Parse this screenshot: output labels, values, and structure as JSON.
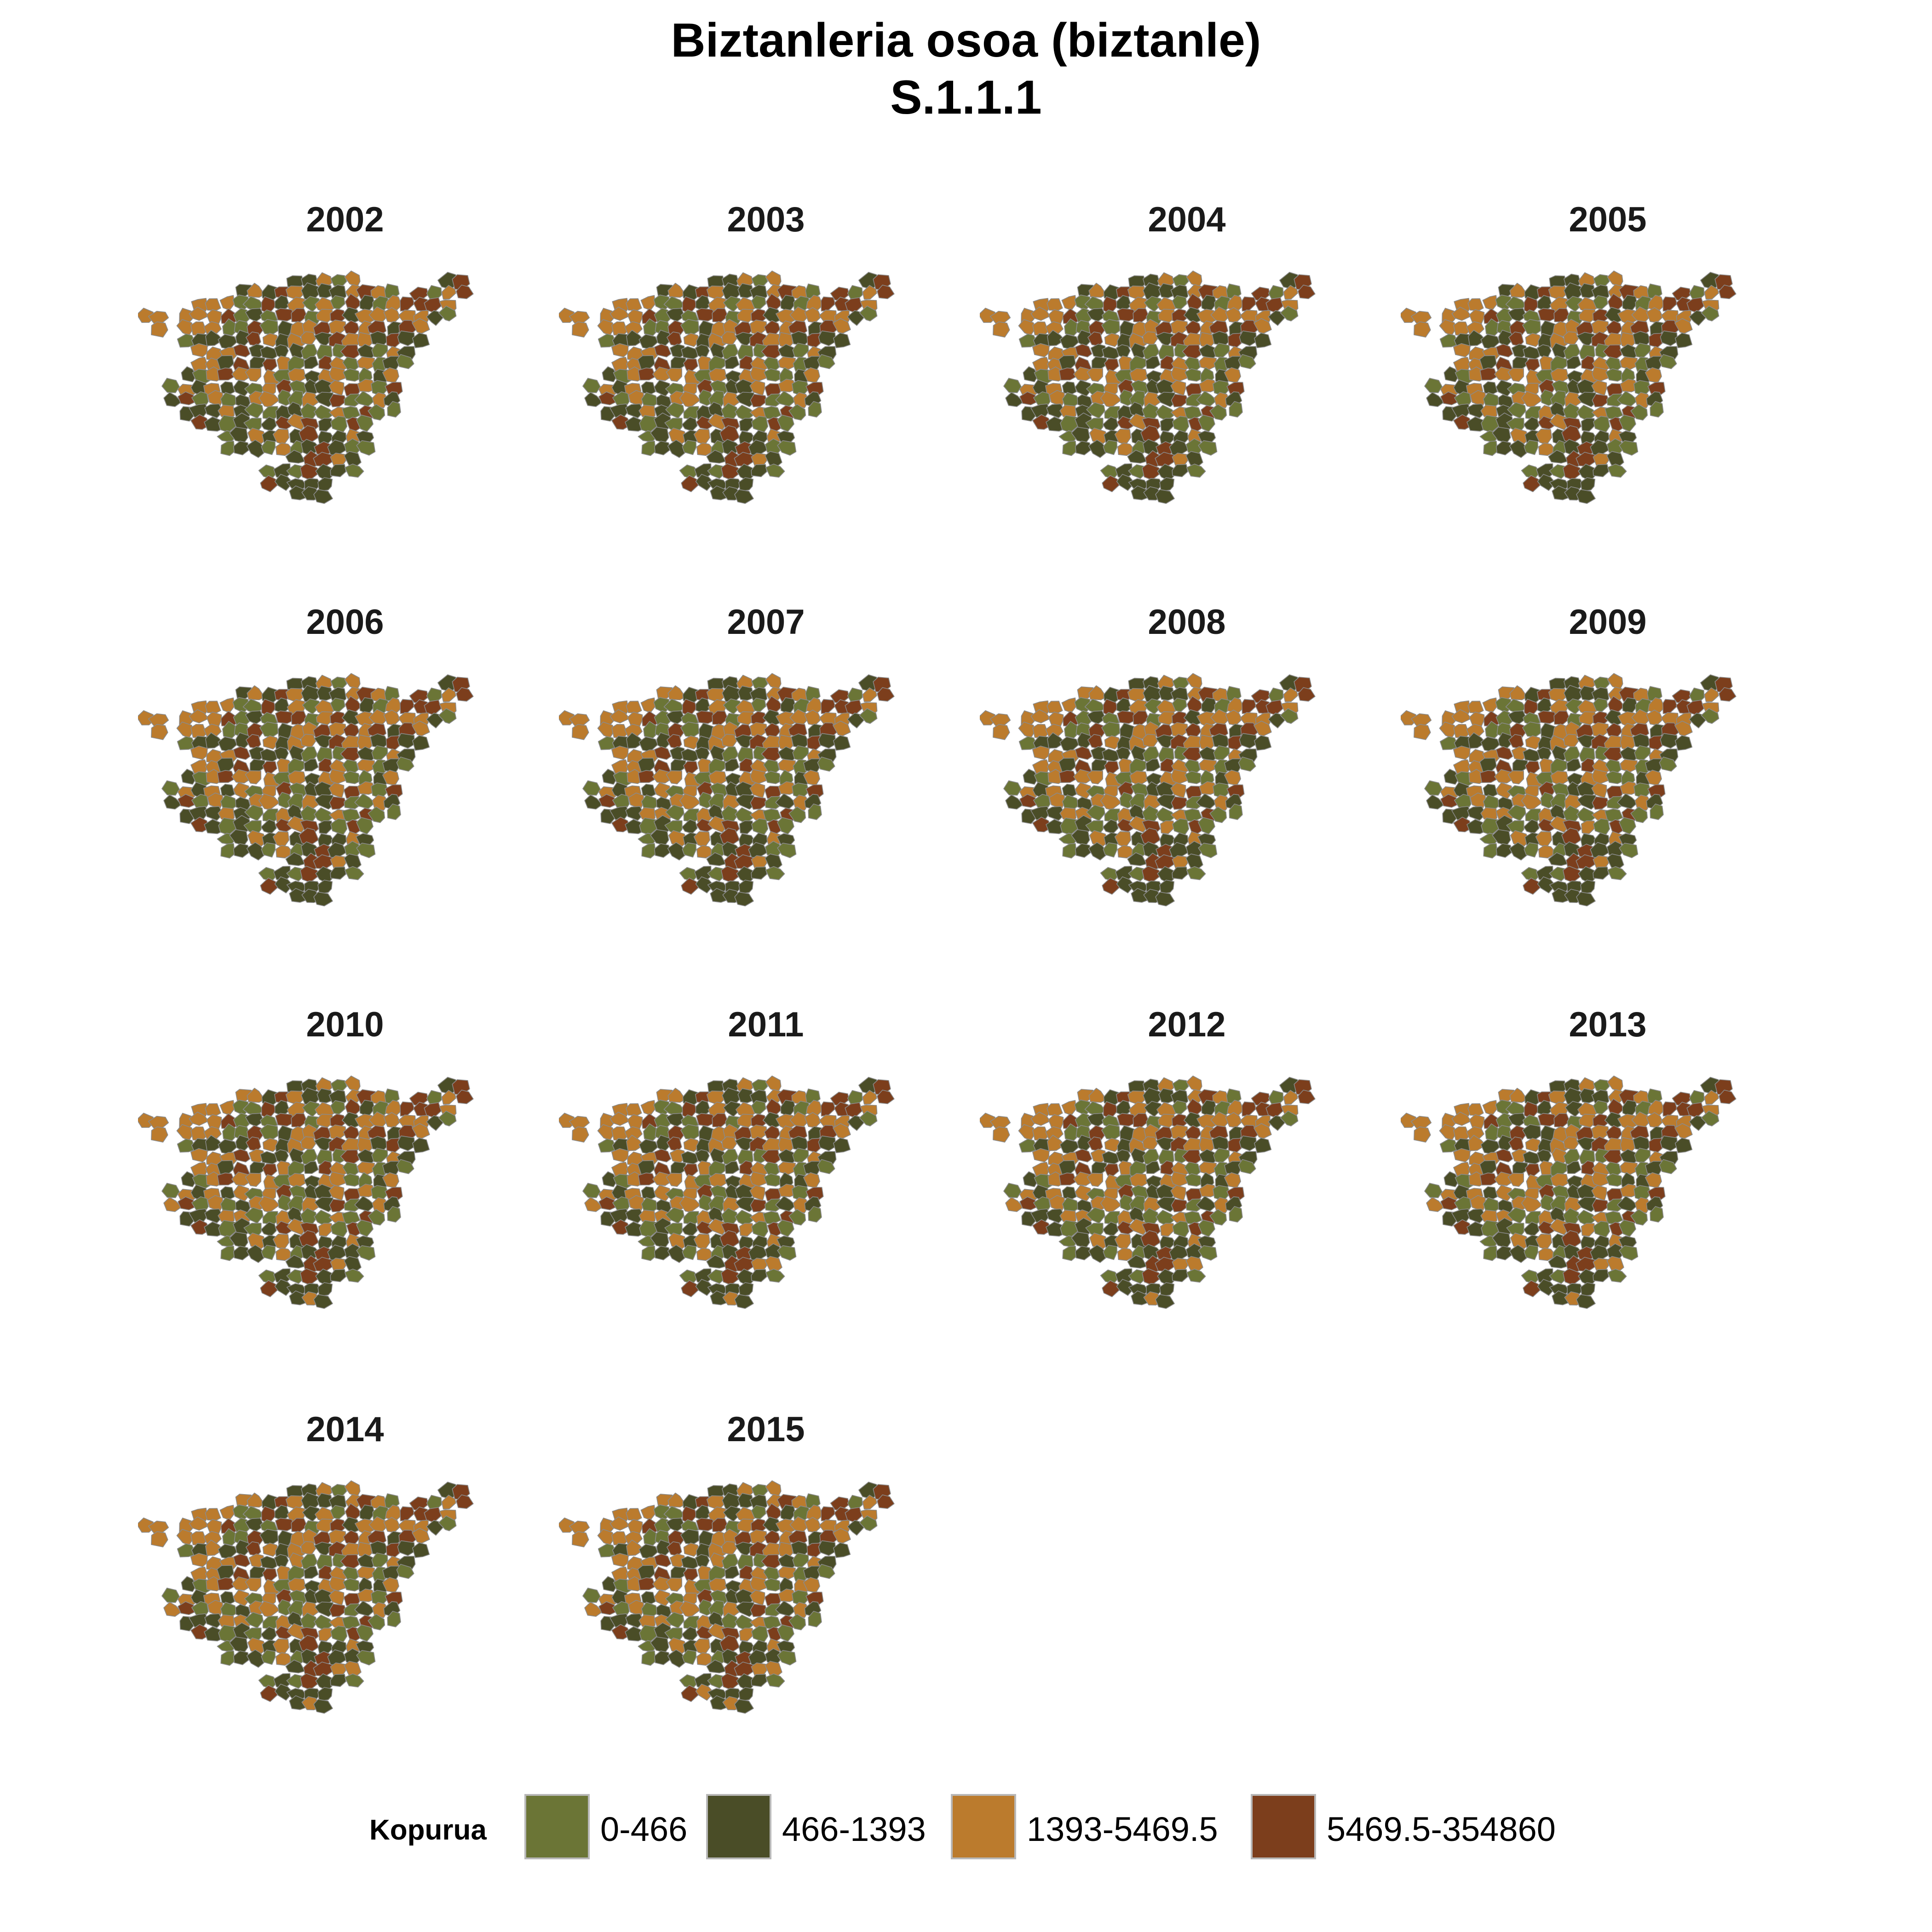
{
  "title": {
    "line1": "Biztanleria osoa (biztanle)",
    "line2": "S.1.1.1"
  },
  "legend": {
    "title": "Kopurua",
    "classes": [
      {
        "label": "0-466",
        "color": "#6b7536"
      },
      {
        "label": "466-1393",
        "color": "#4a4d27"
      },
      {
        "label": "1393-5469.5",
        "color": "#bb7b2d"
      },
      {
        "label": "5469.5-354860",
        "color": "#7c3e1c"
      }
    ]
  },
  "border_color": "#8a8a8a",
  "panels": [
    {
      "year": "2002"
    },
    {
      "year": "2003"
    },
    {
      "year": "2004"
    },
    {
      "year": "2005"
    },
    {
      "year": "2006"
    },
    {
      "year": "2007"
    },
    {
      "year": "2008"
    },
    {
      "year": "2009"
    },
    {
      "year": "2010"
    },
    {
      "year": "2011"
    },
    {
      "year": "2012"
    },
    {
      "year": "2013"
    },
    {
      "year": "2014"
    },
    {
      "year": "2015"
    }
  ]
}
